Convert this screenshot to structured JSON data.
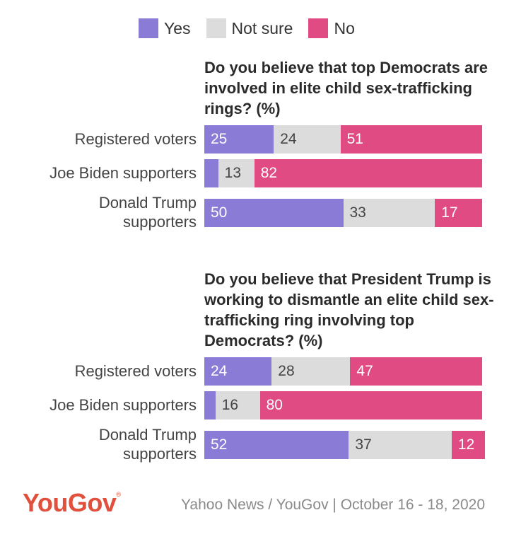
{
  "legend": {
    "yes": "Yes",
    "not_sure": "Not sure",
    "no": "No"
  },
  "colors": {
    "yes": "#8a7bd7",
    "not_sure": "#dcdcdc",
    "no": "#df4b82"
  },
  "chart_data": [
    {
      "type": "bar",
      "orientation": "horizontal-stacked",
      "title": "Do you believe that top Democrats are involved in elite child sex-trafficking rings? (%)",
      "categories": [
        "Registered voters",
        "Joe Biden supporters",
        "Donald Trump supporters"
      ],
      "series": [
        {
          "name": "Yes",
          "values": [
            25,
            5,
            50
          ],
          "labels": [
            "25",
            "",
            "50"
          ]
        },
        {
          "name": "Not sure",
          "values": [
            24,
            13,
            33
          ],
          "labels": [
            "24",
            "13",
            "33"
          ]
        },
        {
          "name": "No",
          "values": [
            51,
            82,
            17
          ],
          "labels": [
            "51",
            "82",
            "17"
          ]
        }
      ],
      "xlim": [
        0,
        100
      ],
      "legend": "top"
    },
    {
      "type": "bar",
      "orientation": "horizontal-stacked",
      "title": "Do you believe that President Trump is working to dismantle an elite child sex-trafficking ring involving top Democrats? (%)",
      "categories": [
        "Registered voters",
        "Joe Biden supporters",
        "Donald Trump supporters"
      ],
      "series": [
        {
          "name": "Yes",
          "values": [
            24,
            4,
            52
          ],
          "labels": [
            "24",
            "",
            "52"
          ]
        },
        {
          "name": "Not sure",
          "values": [
            28,
            16,
            37
          ],
          "labels": [
            "28",
            "16",
            "37"
          ]
        },
        {
          "name": "No",
          "values": [
            47,
            80,
            12
          ],
          "labels": [
            "47",
            "80",
            "12"
          ]
        }
      ],
      "xlim": [
        0,
        100
      ],
      "legend": "top"
    }
  ],
  "row_labels": {
    "registered": "Registered voters",
    "biden": "Joe Biden supporters",
    "trump_line1": "Donald Trump",
    "trump_line2": "supporters"
  },
  "footer": {
    "logo": "YouGov",
    "logo_mark": "®",
    "source": "Yahoo News / YouGov | October 16 - 18, 2020"
  }
}
